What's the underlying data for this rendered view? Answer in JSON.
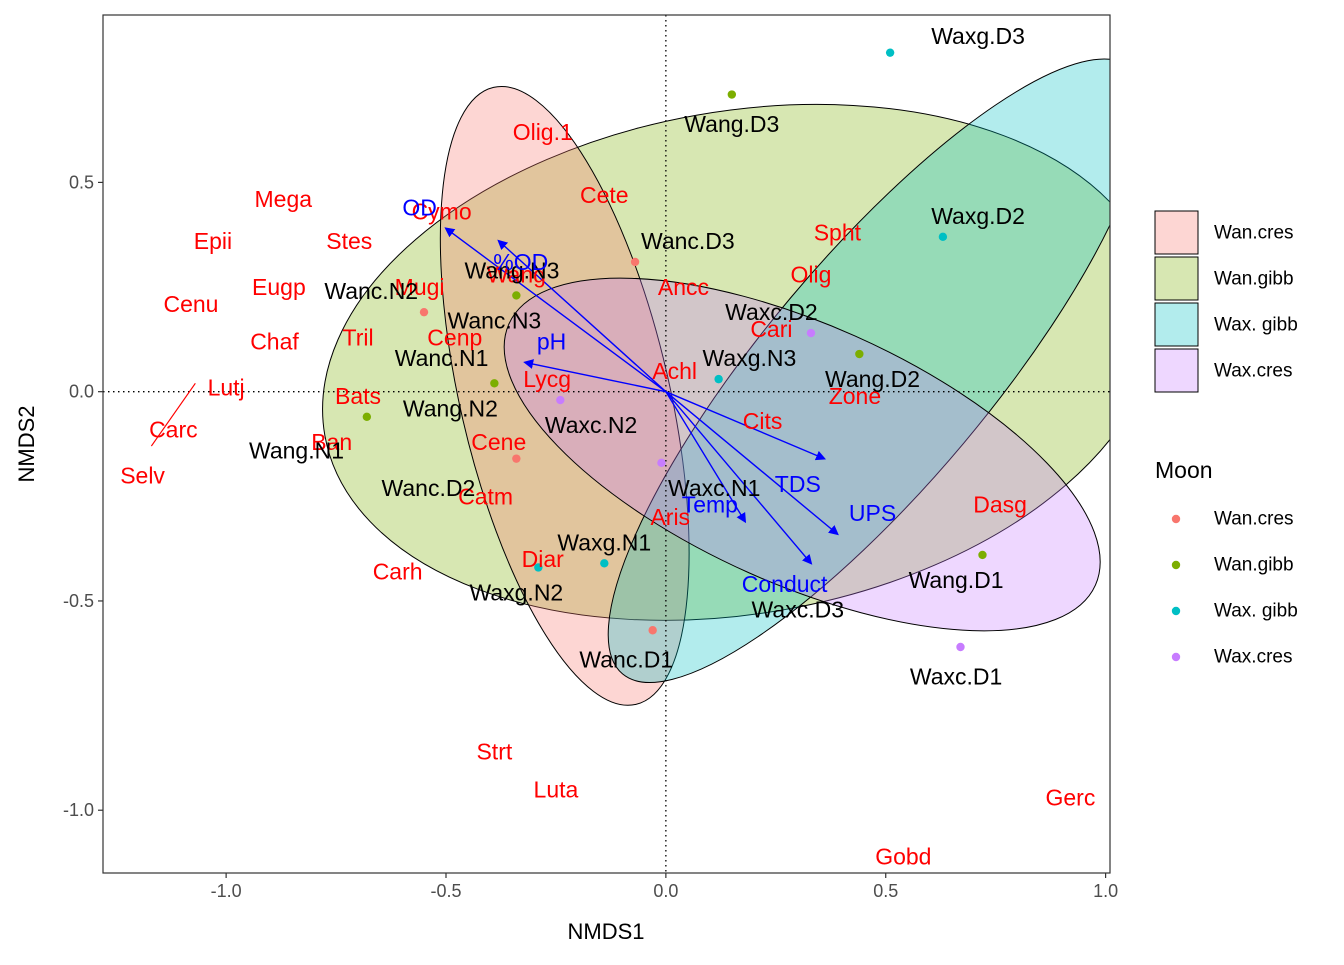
{
  "chart_data": {
    "type": "scatter",
    "xlabel": "NMDS1",
    "ylabel": "NMDS2",
    "xlim": [
      -1.28,
      1.01
    ],
    "ylim": [
      -1.15,
      0.9
    ],
    "x_ticks": [
      {
        "value": -1.0,
        "label": "-1.0"
      },
      {
        "value": -0.5,
        "label": "-0.5"
      },
      {
        "value": 0.0,
        "label": "0.0"
      },
      {
        "value": 0.5,
        "label": "0.5"
      },
      {
        "value": 1.0,
        "label": "1.0"
      }
    ],
    "y_ticks": [
      {
        "value": -1.0,
        "label": "-1.0"
      },
      {
        "value": -0.5,
        "label": "-0.5"
      },
      {
        "value": 0.0,
        "label": "0.0"
      },
      {
        "value": 0.5,
        "label": "0.5"
      }
    ],
    "grid": false,
    "reference_lines": {
      "x": 0,
      "y": 0,
      "style": "dotted"
    },
    "groups": [
      {
        "name": "Wan.cres",
        "color": "#F8766D"
      },
      {
        "name": "Wan.gibb",
        "color": "#7CAE00"
      },
      {
        "name": "Wax. gibb",
        "color": "#00BFC4"
      },
      {
        "name": "Wax.cres",
        "color": "#C77CFF"
      }
    ],
    "ellipses": [
      {
        "group": "Wan.gibb",
        "cx": 0.17,
        "cy": 0.07,
        "rx": 0.96,
        "ry": 0.6,
        "angle_deg": 10
      },
      {
        "group": "Wan.cres",
        "cx": -0.23,
        "cy": -0.01,
        "rx": 0.72,
        "ry": 0.25,
        "angle_deg": -77
      },
      {
        "group": "Wax. gibb",
        "cx": 0.48,
        "cy": 0.05,
        "rx": 0.9,
        "ry": 0.27,
        "angle_deg": 50
      },
      {
        "group": "Wax.cres",
        "cx": 0.31,
        "cy": -0.15,
        "rx": 0.73,
        "ry": 0.31,
        "angle_deg": -24
      }
    ],
    "site_points": [
      {
        "label": "Wanc.D3",
        "group": "Wan.cres",
        "x": -0.07,
        "y": 0.31
      },
      {
        "label": "Wanc.N2",
        "group": "Wan.cres",
        "x": -0.55,
        "y": 0.19
      },
      {
        "label": "Wanc.D2",
        "group": "Wan.cres",
        "x": -0.34,
        "y": -0.16
      },
      {
        "label": "Wanc.D1",
        "group": "Wan.cres",
        "x": -0.03,
        "y": -0.57
      },
      {
        "label": "Wang.D3",
        "group": "Wan.gibb",
        "x": 0.15,
        "y": 0.71
      },
      {
        "label": "Wang.N3",
        "group": "Wan.gibb",
        "x": -0.34,
        "y": 0.23
      },
      {
        "label": "Wang.N2",
        "group": "Wan.gibb",
        "x": -0.39,
        "y": 0.02
      },
      {
        "label": "Wang.N1",
        "group": "Wan.gibb",
        "x": -0.68,
        "y": -0.06
      },
      {
        "label": "Wang.D2",
        "group": "Wan.gibb",
        "x": 0.44,
        "y": 0.09
      },
      {
        "label": "Wang.D1",
        "group": "Wan.gibb",
        "x": 0.72,
        "y": -0.39
      },
      {
        "label": "Waxg.D3",
        "group": "Wax. gibb",
        "x": 0.51,
        "y": 0.81
      },
      {
        "label": "Waxg.D2",
        "group": "Wax. gibb",
        "x": 0.63,
        "y": 0.37
      },
      {
        "label": "Waxg.N3",
        "group": "Wax. gibb",
        "x": 0.12,
        "y": 0.03
      },
      {
        "label": "Waxg.N1",
        "group": "Wax. gibb",
        "x": -0.14,
        "y": -0.41
      },
      {
        "label": "Waxg.N2",
        "group": "Wax. gibb",
        "x": -0.29,
        "y": -0.42
      },
      {
        "label": "Waxc.D2",
        "group": "Wax.cres",
        "x": 0.33,
        "y": 0.14
      },
      {
        "label": "Waxc.N2",
        "group": "Wax.cres",
        "x": -0.24,
        "y": -0.02
      },
      {
        "label": "Waxc.N1",
        "group": "Wax.cres",
        "x": -0.01,
        "y": -0.17
      },
      {
        "label": "Waxc.D1",
        "group": "Wax.cres",
        "x": 0.67,
        "y": -0.61
      }
    ],
    "site_labels": [
      {
        "text": "Wanc.D3",
        "x": 0.05,
        "y": 0.36
      },
      {
        "text": "Wanc.N2",
        "x": -0.67,
        "y": 0.24
      },
      {
        "text": "Wanc.N3",
        "x": -0.39,
        "y": 0.17
      },
      {
        "text": "Wanc.N1",
        "x": -0.51,
        "y": 0.08
      },
      {
        "text": "Wanc.D2",
        "x": -0.54,
        "y": -0.23
      },
      {
        "text": "Wanc.D1",
        "x": -0.09,
        "y": -0.64
      },
      {
        "text": "Wang.D3",
        "x": 0.15,
        "y": 0.64
      },
      {
        "text": "Wang.N3",
        "x": -0.35,
        "y": 0.29
      },
      {
        "text": "Wang.N2",
        "x": -0.49,
        "y": -0.04
      },
      {
        "text": "Wang.N1",
        "x": -0.84,
        "y": -0.14
      },
      {
        "text": "Wang.D2",
        "x": 0.47,
        "y": 0.03
      },
      {
        "text": "Wang.D1",
        "x": 0.66,
        "y": -0.45
      },
      {
        "text": "Waxg.D3",
        "x": 0.71,
        "y": 0.85
      },
      {
        "text": "Waxg.D2",
        "x": 0.71,
        "y": 0.42
      },
      {
        "text": "Waxg.N3",
        "x": 0.19,
        "y": 0.08
      },
      {
        "text": "Waxg.N1",
        "x": -0.14,
        "y": -0.36
      },
      {
        "text": "Waxg.N2",
        "x": -0.34,
        "y": -0.48
      },
      {
        "text": "Waxc.D2",
        "x": 0.24,
        "y": 0.19
      },
      {
        "text": "Waxc.N2",
        "x": -0.17,
        "y": -0.08
      },
      {
        "text": "Waxc.N1",
        "x": 0.11,
        "y": -0.23
      },
      {
        "text": "Waxc.D3",
        "x": 0.3,
        "y": -0.52
      },
      {
        "text": "Waxc.D1",
        "x": 0.66,
        "y": -0.68
      }
    ],
    "species_labels": [
      {
        "text": "Olig.1",
        "x": -0.28,
        "y": 0.62
      },
      {
        "text": "Cete",
        "x": -0.14,
        "y": 0.47
      },
      {
        "text": "Mega",
        "x": -0.87,
        "y": 0.46
      },
      {
        "text": "Cymo",
        "x": -0.51,
        "y": 0.43
      },
      {
        "text": "Stes",
        "x": -0.72,
        "y": 0.36
      },
      {
        "text": "Epii",
        "x": -1.03,
        "y": 0.36
      },
      {
        "text": "Spht",
        "x": 0.39,
        "y": 0.38
      },
      {
        "text": "Wang",
        "x": -0.34,
        "y": 0.28
      },
      {
        "text": "Mugi",
        "x": -0.56,
        "y": 0.25
      },
      {
        "text": "Eugp",
        "x": -0.88,
        "y": 0.25
      },
      {
        "text": "Olig",
        "x": 0.33,
        "y": 0.28
      },
      {
        "text": "Ancc",
        "x": 0.04,
        "y": 0.25
      },
      {
        "text": "Cenu",
        "x": -1.08,
        "y": 0.21
      },
      {
        "text": "Cari",
        "x": 0.24,
        "y": 0.15
      },
      {
        "text": "Cenp",
        "x": -0.48,
        "y": 0.13
      },
      {
        "text": "Tril",
        "x": -0.7,
        "y": 0.13
      },
      {
        "text": "Chaf",
        "x": -0.89,
        "y": 0.12
      },
      {
        "text": "Achl",
        "x": 0.02,
        "y": 0.05
      },
      {
        "text": "Lycg",
        "x": -0.27,
        "y": 0.03
      },
      {
        "text": "Lutj",
        "x": -1.0,
        "y": 0.01
      },
      {
        "text": "Bats",
        "x": -0.7,
        "y": -0.01
      },
      {
        "text": "Zone",
        "x": 0.43,
        "y": -0.01
      },
      {
        "text": "Cits",
        "x": 0.22,
        "y": -0.07
      },
      {
        "text": "Carc",
        "x": -1.12,
        "y": -0.09
      },
      {
        "text": "Cene",
        "x": -0.38,
        "y": -0.12
      },
      {
        "text": "Ban",
        "x": -0.76,
        "y": -0.12
      },
      {
        "text": "Selv",
        "x": -1.19,
        "y": -0.2
      },
      {
        "text": "Catm",
        "x": -0.41,
        "y": -0.25
      },
      {
        "text": "Dasg",
        "x": 0.76,
        "y": -0.27
      },
      {
        "text": "Aris",
        "x": 0.01,
        "y": -0.3
      },
      {
        "text": "Diar",
        "x": -0.28,
        "y": -0.4
      },
      {
        "text": "Carh",
        "x": -0.61,
        "y": -0.43
      },
      {
        "text": "Strt",
        "x": -0.39,
        "y": -0.86
      },
      {
        "text": "Luta",
        "x": -0.25,
        "y": -0.95
      },
      {
        "text": "Gerc",
        "x": 0.92,
        "y": -0.97
      },
      {
        "text": "Gobd",
        "x": 0.54,
        "y": -1.11
      }
    ],
    "species_segment": {
      "x1": -1.17,
      "y1": -0.13,
      "x2": -1.07,
      "y2": 0.02
    },
    "env_vectors": [
      {
        "label": "OD",
        "x": -0.5,
        "y": 0.39,
        "label_x": -0.56,
        "label_y": 0.44
      },
      {
        "label": "%OD",
        "x": -0.38,
        "y": 0.36,
        "label_x": -0.33,
        "label_y": 0.31
      },
      {
        "label": "pH",
        "x": -0.32,
        "y": 0.07,
        "label_x": -0.26,
        "label_y": 0.12
      },
      {
        "label": "TDS",
        "x": 0.36,
        "y": -0.16,
        "label_x": 0.3,
        "label_y": -0.22
      },
      {
        "label": "UPS",
        "x": 0.39,
        "y": -0.34,
        "label_x": 0.47,
        "label_y": -0.29
      },
      {
        "label": "Temp",
        "x": 0.18,
        "y": -0.31,
        "label_x": 0.1,
        "label_y": -0.27
      },
      {
        "label": "Conduct",
        "x": 0.33,
        "y": -0.41,
        "label_x": 0.27,
        "label_y": -0.46
      }
    ],
    "legend": {
      "position": "right",
      "fill_entries": [
        "Wan.cres",
        "Wan.gibb",
        "Wax. gibb",
        "Wax.cres"
      ],
      "point_title": "Moon",
      "point_entries": [
        "Wan.cres",
        "Wan.gibb",
        "Wax. gibb",
        "Wax.cres"
      ]
    }
  }
}
